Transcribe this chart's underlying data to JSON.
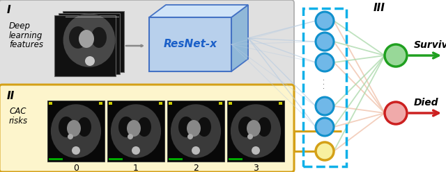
{
  "section_I_label": "I",
  "section_II_label": "II",
  "section_III_label": "III",
  "deep_learning_text": [
    "Deep",
    "learning",
    "features"
  ],
  "cac_risks_text": [
    "CAC",
    "risks"
  ],
  "resnet_text": "ResNet-x",
  "survived_text": "Survived",
  "died_text": "Died",
  "cac_labels": [
    "0",
    "1",
    "2",
    "3"
  ],
  "box_I_fc": "#e0e0e0",
  "box_I_ec": "#aaaaaa",
  "box_II_fc": "#fdf5cc",
  "box_II_ec": "#d4a017",
  "resnet_face_color": "#b8d0ec",
  "resnet_top_color": "#d0e4f8",
  "resnet_side_color": "#90b8d8",
  "resnet_edge_color": "#4472c4",
  "resnet_text_color": "#1a5fc8",
  "neuron_blue_face": "#70b8e8",
  "neuron_blue_edge": "#1090cc",
  "neuron_green_face": "#98d898",
  "neuron_green_edge": "#20a020",
  "neuron_red_face": "#f0aaaa",
  "neuron_red_edge": "#cc2020",
  "neuron_yellow_face": "#f8f0a0",
  "neuron_yellow_edge": "#d4a017",
  "dashed_box_color": "#10b0e8",
  "arrow_green_color": "#20a020",
  "arrow_red_color": "#cc2020",
  "arrow_gray_color": "#888888",
  "arrow_yellow_color": "#d4a017",
  "conn_green_color": "#a8d8a8",
  "conn_red_color": "#f0c0a8",
  "conn_blue_color": "#b8cce0"
}
